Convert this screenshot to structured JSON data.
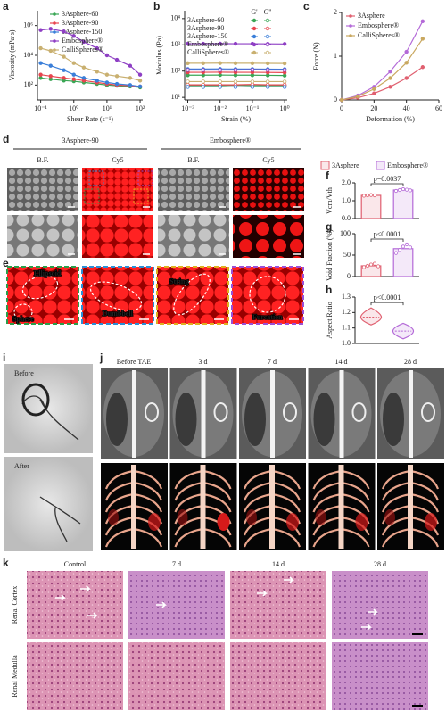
{
  "chart_data": [
    {
      "label": "a",
      "type": "line",
      "x_log": true,
      "y_log": true,
      "markers": true,
      "x_label": "Shear Rate (s⁻¹)",
      "y_label": "Viscosity (mPa·s)",
      "x": [
        0.1,
        0.2,
        0.5,
        1,
        2,
        5,
        10,
        20,
        50,
        100
      ],
      "xlim": [
        0.08,
        120
      ],
      "ylim": [
        10,
        10000000
      ],
      "xticks": [
        {
          "value": 0.1,
          "label": "10⁻¹"
        },
        {
          "value": 1,
          "label": "10⁰"
        },
        {
          "value": 10,
          "label": "10¹"
        },
        {
          "value": 100,
          "label": "10²"
        }
      ],
      "yticks": [
        {
          "value": 100,
          "label": "10²"
        },
        {
          "value": 10000,
          "label": "10⁴"
        },
        {
          "value": 1000000,
          "label": "10⁶"
        }
      ],
      "series": [
        {
          "name": "3Asphere-60",
          "color": "#3aa655",
          "values": [
            300,
            250,
            200,
            180,
            150,
            120,
            100,
            90,
            80,
            70
          ]
        },
        {
          "name": "3Asphere-90",
          "color": "#e8454f",
          "values": [
            500,
            400,
            300,
            250,
            200,
            150,
            120,
            100,
            90,
            80
          ]
        },
        {
          "name": "3Asphere-150",
          "color": "#3b7fd9",
          "values": [
            3000,
            2000,
            1000,
            500,
            300,
            200,
            150,
            120,
            100,
            80
          ]
        },
        {
          "name": "Embosphere®",
          "color": "#8e3fc4",
          "values": [
            500000,
            600000,
            400000,
            200000,
            80000,
            30000,
            10000,
            5000,
            2000,
            500
          ]
        },
        {
          "name": "CalliSpheres®",
          "color": "#c9b070",
          "values": [
            30000,
            20000,
            8000,
            3000,
            1500,
            800,
            500,
            400,
            300,
            200
          ]
        }
      ]
    },
    {
      "label": "b",
      "type": "line",
      "x_log": true,
      "y_log": true,
      "markers": true,
      "dual": true,
      "x_label": "Strain (%)",
      "y_label": "Modulus (Pa)",
      "legend_columns": [
        "G'",
        "G''"
      ],
      "x": [
        0.001,
        0.003,
        0.01,
        0.03,
        0.1,
        0.3,
        1
      ],
      "xlim": [
        0.0008,
        1.2
      ],
      "ylim": [
        8,
        20000
      ],
      "xticks": [
        {
          "value": 0.001,
          "label": "10⁻³"
        },
        {
          "value": 0.01,
          "label": "10⁻²"
        },
        {
          "value": 0.1,
          "label": "10⁻¹"
        },
        {
          "value": 1,
          "label": "10⁰"
        }
      ],
      "yticks": [
        {
          "value": 10,
          "label": "10¹"
        },
        {
          "value": 100,
          "label": "10²"
        },
        {
          "value": 1000,
          "label": "10³"
        },
        {
          "value": 10000,
          "label": "10⁴"
        }
      ],
      "series": [
        {
          "name": "3Asphere-60",
          "color": "#3aa655",
          "values": [
            70,
            70,
            71,
            70,
            70,
            69,
            68
          ],
          "loss_values": [
            28,
            28,
            28,
            29,
            28,
            28,
            28
          ]
        },
        {
          "name": "3Asphere-90",
          "color": "#e8454f",
          "values": [
            90,
            90,
            91,
            90,
            90,
            89,
            88
          ],
          "loss_values": [
            30,
            30,
            30,
            30,
            31,
            30,
            30
          ]
        },
        {
          "name": "3Asphere-150",
          "color": "#3b7fd9",
          "values": [
            120,
            120,
            121,
            120,
            120,
            119,
            118
          ],
          "loss_values": [
            25,
            25,
            25,
            25,
            25,
            25,
            25
          ]
        },
        {
          "name": "Embosphere®",
          "color": "#8e3fc4",
          "values": [
            1100,
            1100,
            1110,
            1100,
            1100,
            1090,
            1080
          ],
          "loss_values": [
            110,
            110,
            110,
            110,
            112,
            110,
            110
          ]
        },
        {
          "name": "CalliSpheres®",
          "color": "#c9b070",
          "values": [
            200,
            200,
            202,
            200,
            200,
            198,
            196
          ],
          "loss_values": [
            40,
            40,
            40,
            40,
            40,
            40,
            40
          ]
        }
      ]
    },
    {
      "label": "c",
      "type": "line",
      "markers": true,
      "x_label": "Deformation (%)",
      "y_label": "Force (N)",
      "x": [
        0,
        10,
        20,
        30,
        40,
        50
      ],
      "xlim": [
        0,
        60
      ],
      "ylim": [
        0,
        2
      ],
      "xticks": [
        0,
        20,
        40,
        60
      ],
      "yticks": [
        0,
        1,
        2
      ],
      "series": [
        {
          "name": "3Asphere",
          "color": "#e06070",
          "values": [
            0,
            0.05,
            0.15,
            0.3,
            0.5,
            0.75
          ]
        },
        {
          "name": "Embosphere®",
          "color": "#b46ad8",
          "values": [
            0,
            0.1,
            0.3,
            0.65,
            1.1,
            1.8
          ]
        },
        {
          "name": "CalliSpheres®",
          "color": "#c9a860",
          "values": [
            0,
            0.08,
            0.25,
            0.5,
            0.85,
            1.4
          ]
        }
      ]
    },
    {
      "label": "f",
      "type": "bar",
      "y_label": "Vcm/Vth",
      "annotation": "p=0.0037",
      "colors": [
        "#e06070",
        "#b46ad8"
      ],
      "values": [
        1.3,
        1.6
      ],
      "points": [
        [
          1.28,
          1.3,
          1.32,
          1.3
        ],
        [
          1.55,
          1.6,
          1.65,
          1.62,
          1.58
        ]
      ],
      "ylim": [
        0,
        2
      ],
      "yticks": [
        {
          "value": 0,
          "label": "0.0"
        },
        {
          "value": 1,
          "label": "1.0"
        },
        {
          "value": 2,
          "label": "2.0"
        }
      ]
    },
    {
      "label": "g",
      "type": "bar",
      "y_label": "Void Fraction (%)",
      "annotation": "p<0.0001",
      "colors": [
        "#e06070",
        "#b46ad8"
      ],
      "values": [
        25,
        65
      ],
      "points": [
        [
          22,
          25,
          28,
          30,
          24
        ],
        [
          55,
          62,
          70,
          75,
          68
        ]
      ],
      "ylim": [
        0,
        100
      ],
      "yticks": [
        0,
        50,
        100
      ]
    },
    {
      "label": "h",
      "type": "violin",
      "y_label": "Aspect Ratio",
      "annotation": "p<0.0001",
      "colors": [
        "#e06070",
        "#b46ad8"
      ],
      "values": [
        1.17,
        1.08
      ],
      "ranges": [
        [
          1.12,
          1.23
        ],
        [
          1.03,
          1.13
        ]
      ],
      "ylim": [
        1.0,
        1.3
      ],
      "yticks": [
        {
          "value": 1,
          "label": "1.0"
        },
        1.1,
        1.2,
        1.3
      ]
    }
  ],
  "shared_legend": [
    "3Asphere",
    "Embosphere®"
  ],
  "figure_d": {
    "label": "d",
    "groups": [
      "3Asphere-90",
      "Embosphere®"
    ],
    "columns": [
      "B.F.",
      "Cy5",
      "B.F.",
      "Cy5"
    ]
  },
  "figure_e": {
    "label": "e",
    "annotations": [
      "Ellipsoid",
      "Sphere",
      "Dumbbell",
      "String",
      "Furcation"
    ]
  },
  "figure_i": {
    "label": "i",
    "images": [
      "Before",
      "After"
    ]
  },
  "figure_j": {
    "label": "j",
    "timepoints": [
      "Before TAE",
      "3 d",
      "7 d",
      "14 d",
      "28 d"
    ]
  },
  "figure_k": {
    "label": "k",
    "timepoints": [
      "Control",
      "7 d",
      "14 d",
      "28 d"
    ],
    "rows": [
      "Renal Cortex",
      "Renal Medulla"
    ]
  }
}
